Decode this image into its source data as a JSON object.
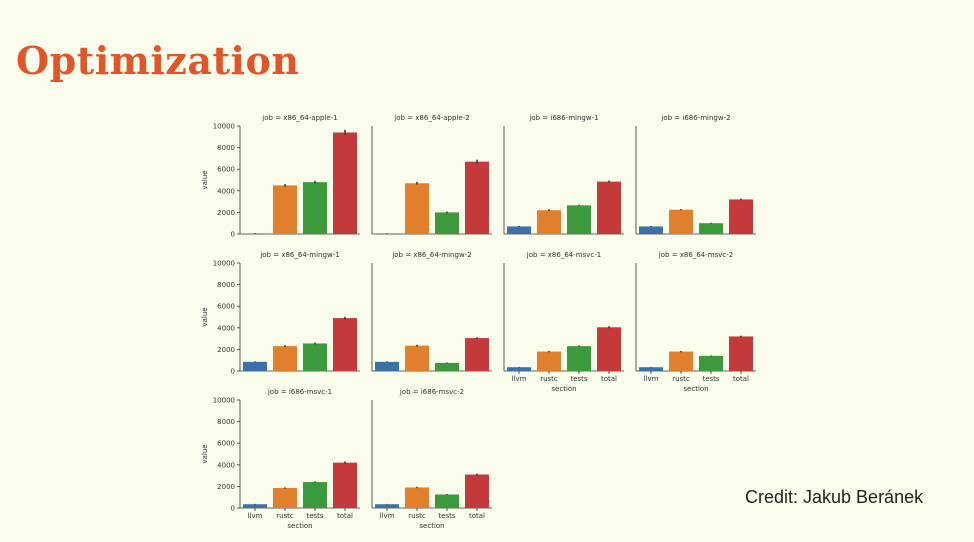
{
  "slide": {
    "title": "Optimization",
    "credit": "Credit: Jakub Beránek"
  },
  "chart_data": {
    "type": "bar",
    "layout": "facet-grid",
    "columns": 4,
    "xlabel": "section",
    "ylabel": "value",
    "ylim": [
      0,
      10000
    ],
    "yticks": [
      0,
      2000,
      4000,
      6000,
      8000,
      10000
    ],
    "categories": [
      "llvm",
      "rustc",
      "tests",
      "total"
    ],
    "colors": [
      "#3c72a6",
      "#e0802c",
      "#3c9a3c",
      "#c43a3a"
    ],
    "panels": [
      {
        "title": "job = x86_64-apple-1",
        "values": [
          50,
          4500,
          4800,
          9400
        ],
        "errors": [
          30,
          120,
          120,
          250
        ]
      },
      {
        "title": "job = x86_64-apple-2",
        "values": [
          50,
          4700,
          2000,
          6700
        ],
        "errors": [
          30,
          120,
          80,
          180
        ]
      },
      {
        "title": "job = i686-mingw-1",
        "values": [
          700,
          2200,
          2650,
          4850
        ],
        "errors": [
          40,
          80,
          60,
          100
        ]
      },
      {
        "title": "job = i686-mingw-2",
        "values": [
          700,
          2250,
          1000,
          3200
        ],
        "errors": [
          40,
          60,
          40,
          80
        ]
      },
      {
        "title": "job = x86_64-mingw-1",
        "values": [
          850,
          2300,
          2550,
          4900
        ],
        "errors": [
          40,
          80,
          80,
          120
        ]
      },
      {
        "title": "job = x86_64-mingw-2",
        "values": [
          850,
          2350,
          750,
          3050
        ],
        "errors": [
          40,
          80,
          40,
          80
        ]
      },
      {
        "title": "job = x86_64-msvc-1",
        "values": [
          350,
          1800,
          2300,
          4050
        ],
        "errors": [
          30,
          60,
          60,
          100
        ]
      },
      {
        "title": "job = x86_64-msvc-2",
        "values": [
          350,
          1800,
          1400,
          3200
        ],
        "errors": [
          30,
          60,
          40,
          80
        ]
      },
      {
        "title": "job = i686-msvc-1",
        "values": [
          350,
          1850,
          2400,
          4200
        ],
        "errors": [
          30,
          60,
          60,
          100
        ]
      },
      {
        "title": "job = i686-msvc-2",
        "values": [
          350,
          1900,
          1250,
          3100
        ],
        "errors": [
          30,
          60,
          40,
          80
        ]
      }
    ]
  }
}
